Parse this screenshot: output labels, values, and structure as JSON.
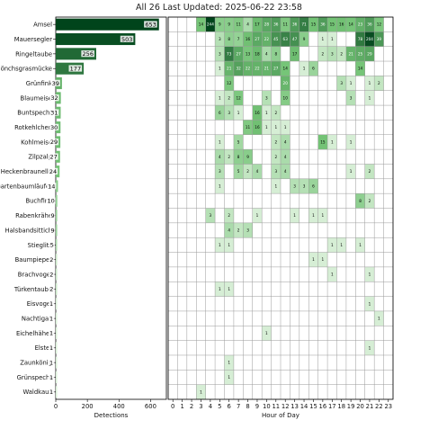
{
  "title": "All 26 Last Updated: 2025-06-22 23:58",
  "chart_data": [
    {
      "type": "bar",
      "orientation": "horizontal",
      "categories": [
        "Amsel",
        "Mauersegler",
        "Ringeltaube",
        "Mönchsgrasmücke",
        "Grünfink",
        "Blaumeise",
        "Buntspecht",
        "Rotkehlchen",
        "Kohlmeise",
        "Zilpzalp",
        "Heckenbraunelle",
        "Gartenbaumläufer",
        "Buchfink",
        "Rabenkrähe",
        "Halsbandsittich",
        "Stieglitz",
        "Baumpieper",
        "Brachvogel",
        "Türkentaube",
        "Eisvogel",
        "Nachtigall",
        "Eichelhäher",
        "Elster",
        "Zaunkönig",
        "Grünspecht",
        "Waldkauz"
      ],
      "values": [
        653,
        503,
        256,
        177,
        39,
        32,
        31,
        30,
        29,
        27,
        24,
        14,
        10,
        9,
        9,
        5,
        2,
        2,
        2,
        1,
        1,
        1,
        1,
        1,
        1,
        1
      ],
      "xlabel": "Detections",
      "xticks": [
        0,
        200,
        400,
        600
      ],
      "xlim": [
        0,
        700
      ]
    },
    {
      "type": "heatmap",
      "xlabel": "Hour of Day",
      "hours": [
        "0",
        "1",
        "2",
        "3",
        "4",
        "5",
        "6",
        "7",
        "8",
        "9",
        "10",
        "11",
        "12",
        "13",
        "14",
        "15",
        "16",
        "17",
        "18",
        "19",
        "20",
        "21",
        "22",
        "23"
      ],
      "rows": [
        [
          0,
          0,
          0,
          14,
          244,
          9,
          9,
          11,
          4,
          17,
          28,
          36,
          11,
          36,
          71,
          15,
          36,
          15,
          16,
          14,
          23,
          36,
          12,
          0
        ],
        [
          0,
          0,
          0,
          0,
          0,
          3,
          8,
          7,
          16,
          27,
          22,
          45,
          63,
          47,
          9,
          0,
          1,
          1,
          0,
          0,
          78,
          204,
          39,
          0
        ],
        [
          0,
          0,
          0,
          0,
          0,
          3,
          73,
          27,
          13,
          18,
          4,
          8,
          0,
          17,
          0,
          0,
          2,
          3,
          2,
          21,
          25,
          29,
          0,
          0
        ],
        [
          0,
          0,
          0,
          0,
          0,
          1,
          21,
          32,
          22,
          22,
          21,
          27,
          14,
          0,
          1,
          6,
          0,
          0,
          0,
          0,
          14,
          0,
          0,
          0
        ],
        [
          0,
          0,
          0,
          0,
          0,
          0,
          12,
          0,
          0,
          0,
          0,
          0,
          20,
          0,
          0,
          0,
          0,
          0,
          3,
          1,
          0,
          1,
          2,
          0
        ],
        [
          0,
          0,
          0,
          0,
          0,
          1,
          2,
          12,
          0,
          0,
          3,
          0,
          10,
          0,
          0,
          0,
          0,
          0,
          0,
          3,
          0,
          1,
          0,
          0
        ],
        [
          0,
          0,
          0,
          0,
          0,
          6,
          3,
          1,
          0,
          16,
          1,
          2,
          0,
          0,
          0,
          0,
          0,
          0,
          0,
          0,
          0,
          0,
          0,
          0
        ],
        [
          0,
          0,
          0,
          0,
          0,
          0,
          0,
          0,
          11,
          16,
          1,
          1,
          1,
          0,
          0,
          0,
          0,
          0,
          0,
          0,
          0,
          0,
          0,
          0
        ],
        [
          0,
          0,
          0,
          0,
          0,
          1,
          0,
          5,
          0,
          0,
          0,
          2,
          4,
          0,
          0,
          0,
          15,
          1,
          0,
          1,
          0,
          0,
          0,
          0
        ],
        [
          0,
          0,
          0,
          0,
          0,
          4,
          2,
          8,
          9,
          0,
          0,
          2,
          4,
          0,
          0,
          0,
          0,
          0,
          0,
          0,
          0,
          0,
          0,
          0
        ],
        [
          0,
          0,
          0,
          0,
          0,
          3,
          0,
          5,
          2,
          4,
          0,
          3,
          4,
          0,
          0,
          0,
          0,
          0,
          0,
          1,
          0,
          2,
          0,
          0
        ],
        [
          0,
          0,
          0,
          0,
          0,
          1,
          0,
          0,
          0,
          0,
          0,
          1,
          0,
          3,
          3,
          6,
          0,
          0,
          0,
          0,
          0,
          0,
          0,
          0
        ],
        [
          0,
          0,
          0,
          0,
          0,
          0,
          0,
          0,
          0,
          0,
          0,
          0,
          0,
          0,
          0,
          0,
          0,
          0,
          0,
          0,
          8,
          2,
          0,
          0
        ],
        [
          0,
          0,
          0,
          0,
          3,
          0,
          2,
          0,
          0,
          1,
          0,
          0,
          0,
          1,
          0,
          1,
          1,
          0,
          0,
          0,
          0,
          0,
          0,
          0
        ],
        [
          0,
          0,
          0,
          0,
          0,
          0,
          4,
          2,
          3,
          0,
          0,
          0,
          0,
          0,
          0,
          0,
          0,
          0,
          0,
          0,
          0,
          0,
          0,
          0
        ],
        [
          0,
          0,
          0,
          0,
          0,
          1,
          1,
          0,
          0,
          0,
          0,
          0,
          0,
          0,
          0,
          0,
          0,
          1,
          1,
          0,
          1,
          0,
          0,
          0
        ],
        [
          0,
          0,
          0,
          0,
          0,
          0,
          0,
          0,
          0,
          0,
          0,
          0,
          0,
          0,
          0,
          1,
          1,
          0,
          0,
          0,
          0,
          0,
          0,
          0
        ],
        [
          0,
          0,
          0,
          0,
          0,
          0,
          0,
          0,
          0,
          0,
          0,
          0,
          0,
          0,
          0,
          0,
          0,
          1,
          0,
          0,
          0,
          1,
          0,
          0
        ],
        [
          0,
          0,
          0,
          0,
          0,
          1,
          1,
          0,
          0,
          0,
          0,
          0,
          0,
          0,
          0,
          0,
          0,
          0,
          0,
          0,
          0,
          0,
          0,
          0
        ],
        [
          0,
          0,
          0,
          0,
          0,
          0,
          0,
          0,
          0,
          0,
          0,
          0,
          0,
          0,
          0,
          0,
          0,
          0,
          0,
          0,
          0,
          1,
          0,
          0
        ],
        [
          0,
          0,
          0,
          0,
          0,
          0,
          0,
          0,
          0,
          0,
          0,
          0,
          0,
          0,
          0,
          0,
          0,
          0,
          0,
          0,
          0,
          0,
          1,
          0
        ],
        [
          0,
          0,
          0,
          0,
          0,
          0,
          0,
          0,
          0,
          0,
          1,
          0,
          0,
          0,
          0,
          0,
          0,
          0,
          0,
          0,
          0,
          0,
          0,
          0
        ],
        [
          0,
          0,
          0,
          0,
          0,
          0,
          0,
          0,
          0,
          0,
          0,
          0,
          0,
          0,
          0,
          0,
          0,
          0,
          0,
          0,
          0,
          1,
          0,
          0
        ],
        [
          0,
          0,
          0,
          0,
          0,
          0,
          1,
          0,
          0,
          0,
          0,
          0,
          0,
          0,
          0,
          0,
          0,
          0,
          0,
          0,
          0,
          0,
          0,
          0
        ],
        [
          0,
          0,
          0,
          0,
          0,
          0,
          1,
          0,
          0,
          0,
          0,
          0,
          0,
          0,
          0,
          0,
          0,
          0,
          0,
          0,
          0,
          0,
          0,
          0
        ],
        [
          0,
          0,
          0,
          1,
          0,
          0,
          0,
          0,
          0,
          0,
          0,
          0,
          0,
          0,
          0,
          0,
          0,
          0,
          0,
          0,
          0,
          0,
          0,
          0
        ]
      ],
      "current_hour": "23",
      "colors": {
        "max": "#00441b",
        "light": "#f7fcf5",
        "current_hour": "#a6d96a"
      }
    }
  ]
}
